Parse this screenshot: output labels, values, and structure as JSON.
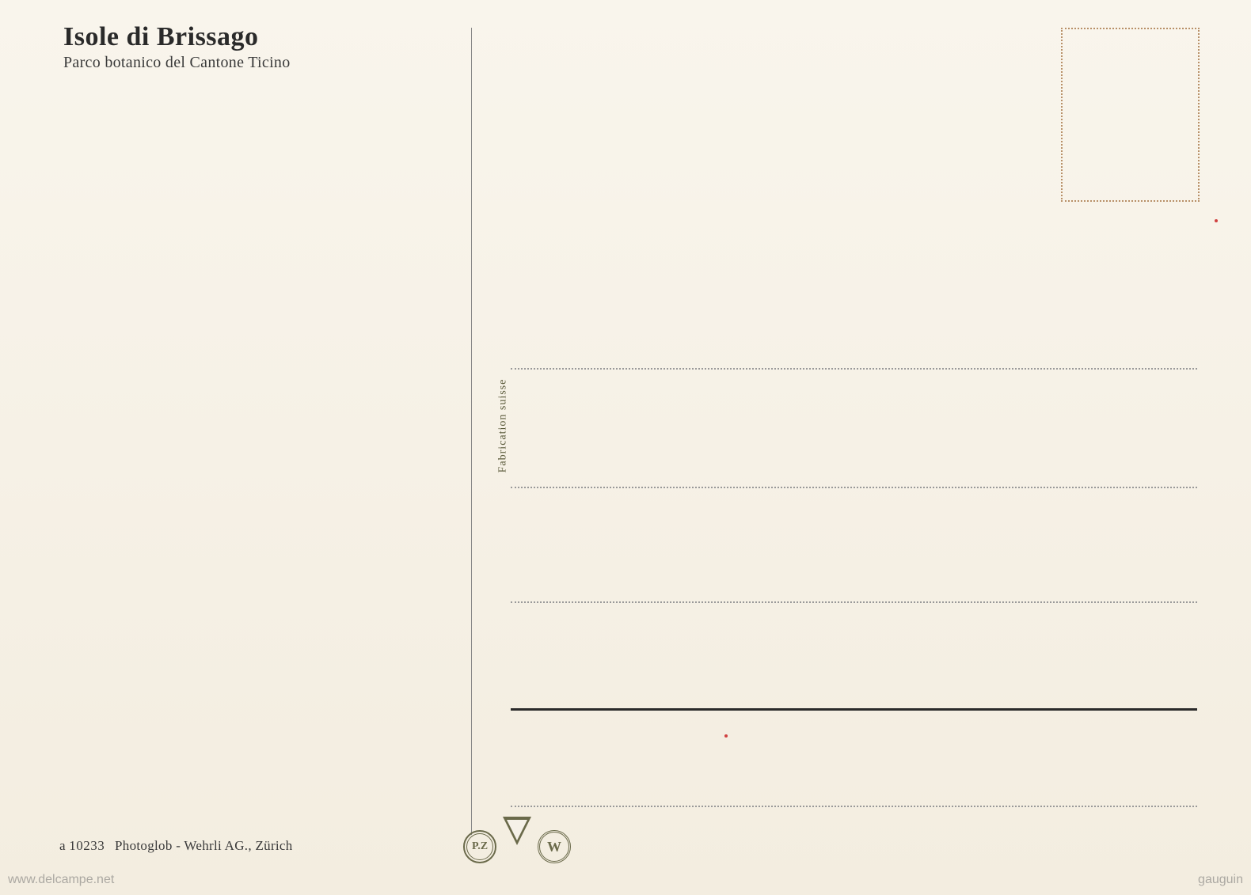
{
  "header": {
    "title": "Isole di Brissago",
    "subtitle": "Parco botanico del Cantone Ticino"
  },
  "center": {
    "fabrication_text": "Fabrication suisse"
  },
  "credit": {
    "prefix": "a",
    "number": "10233",
    "publisher": "Photoglob - Wehrli AG., Zürich"
  },
  "logos": {
    "pz": "P.Z",
    "w": "W"
  },
  "watermarks": {
    "left": "www.delcampe.net",
    "right": "gauguin"
  },
  "colors": {
    "background": "#f5f1e8",
    "text_dark": "#2a2a2a",
    "text_olive": "#6a6a4a",
    "stamp_border": "#b89068",
    "line_dotted": "#999",
    "line_solid": "#2a2a2a"
  }
}
